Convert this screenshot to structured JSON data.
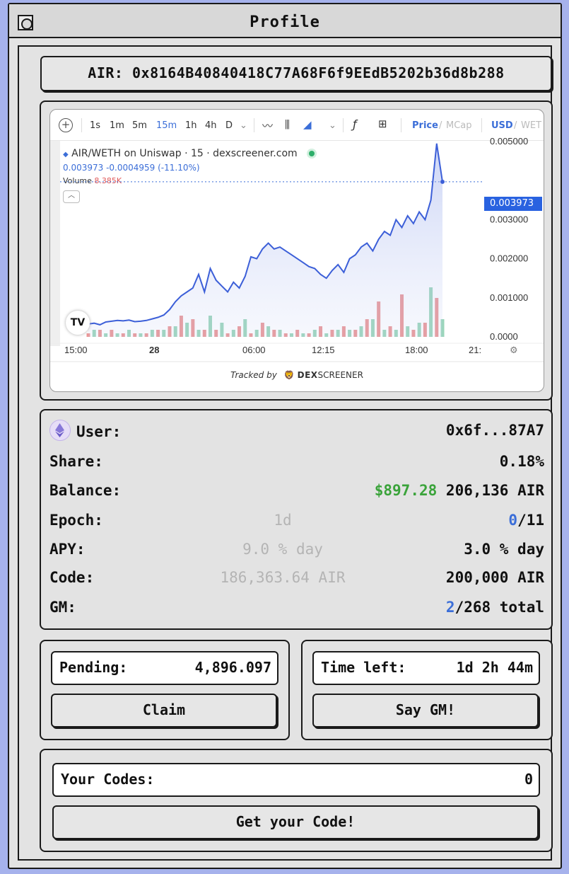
{
  "window": {
    "title": "Profile"
  },
  "token": {
    "address_line": "AIR: 0x8164B40840418C77A68F6f9EEdB5202b36d8b288"
  },
  "chart_widget": {
    "toolbar": {
      "intervals": [
        "1s",
        "1m",
        "5m",
        "15m",
        "1h",
        "4h",
        "D"
      ],
      "active_interval": "15m",
      "price_label": "Price",
      "mcap_label": "MCap",
      "currency_label": "USD",
      "quote_label": "WET"
    },
    "legend_title": "AIR/WETH on Uniswap · 15 · dexscreener.com",
    "legend_values": "0.003973 -0.0004959 (-11.10%)",
    "volume_label": "Volume",
    "volume_value": "8.385K",
    "current_price_label": "0.003973",
    "tracked_by": "Tracked by",
    "brand": "DEX",
    "brand_suffix": "SCREENER",
    "tv_logo": "TV"
  },
  "chart_data": {
    "type": "line",
    "title": "AIR/WETH on Uniswap · 15 · dexscreener.com",
    "xlabel": "",
    "ylabel": "",
    "x_ticks": [
      "15:00",
      "28",
      "06:00",
      "12:15",
      "18:00",
      "21:"
    ],
    "y_ticks": [
      "0.0000",
      "0.001000",
      "0.002000",
      "0.003000",
      "0.003973",
      "0.005000"
    ],
    "ylim": [
      0,
      0.0052
    ],
    "series": [
      {
        "values": [
          0.00033,
          0.00035,
          0.00031,
          0.00038,
          0.0004,
          0.00042,
          0.00041,
          0.00043,
          0.00039,
          0.0004,
          0.00042,
          0.00046,
          0.0005,
          0.00056,
          0.0007,
          0.0009,
          0.00105,
          0.00115,
          0.00125,
          0.0016,
          0.00115,
          0.00175,
          0.00145,
          0.0013,
          0.00115,
          0.0014,
          0.00125,
          0.00155,
          0.00205,
          0.002,
          0.00225,
          0.0024,
          0.00225,
          0.0023,
          0.0022,
          0.0021,
          0.002,
          0.0019,
          0.0018,
          0.00175,
          0.0016,
          0.0015,
          0.0017,
          0.00185,
          0.00165,
          0.002,
          0.0021,
          0.0023,
          0.0024,
          0.0022,
          0.0025,
          0.0027,
          0.0026,
          0.003,
          0.0028,
          0.0031,
          0.0029,
          0.0032,
          0.003,
          0.0035,
          0.00495,
          0.00397
        ]
      }
    ],
    "volume": [
      1,
      2,
      2,
      1,
      2,
      1,
      1,
      2,
      1,
      1,
      1,
      2,
      2,
      2,
      3,
      3,
      6,
      4,
      5,
      2,
      2,
      6,
      2,
      4,
      1,
      2,
      3,
      5,
      1,
      2,
      4,
      3,
      2,
      2,
      1,
      1,
      2,
      1,
      1,
      2,
      3,
      1,
      2,
      2,
      3,
      2,
      2,
      3,
      5,
      5,
      10,
      2,
      3,
      2,
      12,
      3,
      2,
      4,
      4,
      14,
      11,
      5
    ],
    "volume_colors": [
      "#e88b8b",
      "#8fd0b3"
    ]
  },
  "user_info": {
    "user_label": "User:",
    "user_value": "0x6f...87A7",
    "share_label": "Share:",
    "share_value": "0.18%",
    "balance_label": "Balance:",
    "balance_usd": "$897.28",
    "balance_air": "206,136 AIR",
    "epoch_label": "Epoch:",
    "epoch_mid": "1d",
    "epoch_current": "0",
    "epoch_total": "/11",
    "apy_label": "APY:",
    "apy_mid": "9.0 % day",
    "apy_value": "3.0 % day",
    "code_label": "Code:",
    "code_mid": "186,363.64 AIR",
    "code_value": "200,000 AIR",
    "gm_label": "GM:",
    "gm_current": "2",
    "gm_total": "/268 total"
  },
  "claim_panel": {
    "pending_label": "Pending:",
    "pending_value": "4,896.097",
    "claim_button": "Claim"
  },
  "gm_panel": {
    "time_label": "Time left:",
    "time_value": "1d 2h 44m",
    "gm_button": "Say GM!"
  },
  "codes_panel": {
    "codes_label": "Your Codes:",
    "codes_value": "0",
    "get_code_button": "Get your Code!"
  },
  "colors": {
    "background": "#a6b2ec",
    "window": "#e3e3e3",
    "accent_blue": "#3b6ed8",
    "green": "#3aa33a",
    "line": "#3c5fd8"
  }
}
